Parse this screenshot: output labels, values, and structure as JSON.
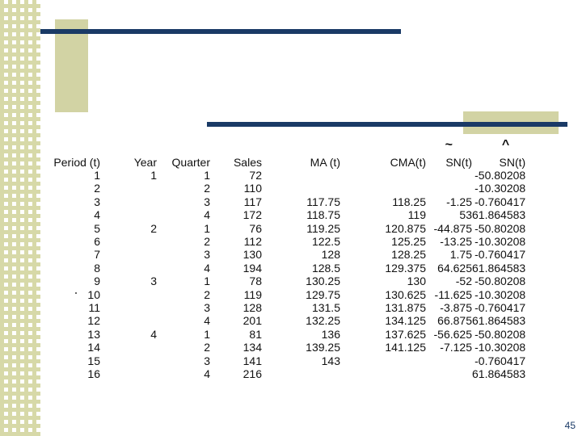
{
  "table": {
    "headers": {
      "period": "Period (t)",
      "year": "Year",
      "quarter": "Quarter",
      "sales": "Sales",
      "ma": "MA (t)",
      "cma": "CMA(t)",
      "sn": "SN(t)",
      "sn_hat": "SN(t)",
      "sn_mark": "~",
      "sn_hat_mark": "^"
    },
    "rows": [
      {
        "period": "1",
        "year": "1",
        "quarter": "1",
        "sales": "72",
        "ma": "",
        "cma": "",
        "sn": "",
        "sn_hat": "-50.80208"
      },
      {
        "period": "2",
        "year": "",
        "quarter": "2",
        "sales": "110",
        "ma": "",
        "cma": "",
        "sn": "",
        "sn_hat": "-10.30208"
      },
      {
        "period": "3",
        "year": "",
        "quarter": "3",
        "sales": "117",
        "ma": "117.75",
        "cma": "118.25",
        "sn": "-1.25",
        "sn_hat": "-0.760417"
      },
      {
        "period": "4",
        "year": "",
        "quarter": "4",
        "sales": "172",
        "ma": "118.75",
        "cma": "119",
        "sn": "53",
        "sn_hat": "61.864583"
      },
      {
        "period": "5",
        "year": "2",
        "quarter": "1",
        "sales": "76",
        "ma": "119.25",
        "cma": "120.875",
        "sn": "-44.875",
        "sn_hat": "-50.80208"
      },
      {
        "period": "6",
        "year": "",
        "quarter": "2",
        "sales": "112",
        "ma": "122.5",
        "cma": "125.25",
        "sn": "-13.25",
        "sn_hat": "-10.30208"
      },
      {
        "period": "7",
        "year": "",
        "quarter": "3",
        "sales": "130",
        "ma": "128",
        "cma": "128.25",
        "sn": "1.75",
        "sn_hat": "-0.760417"
      },
      {
        "period": "8",
        "year": "",
        "quarter": "4",
        "sales": "194",
        "ma": "128.5",
        "cma": "129.375",
        "sn": "64.625",
        "sn_hat": "61.864583"
      },
      {
        "period": "9",
        "year": "3",
        "quarter": "1",
        "sales": "78",
        "ma": "130.25",
        "cma": "130",
        "sn": "-52",
        "sn_hat": "-50.80208"
      },
      {
        "period": "10",
        "year": "",
        "quarter": "2",
        "sales": "119",
        "ma": "129.75",
        "cma": "130.625",
        "sn": "-11.625",
        "sn_hat": "-10.30208"
      },
      {
        "period": "11",
        "year": "",
        "quarter": "3",
        "sales": "128",
        "ma": "131.5",
        "cma": "131.875",
        "sn": "-3.875",
        "sn_hat": "-0.760417"
      },
      {
        "period": "12",
        "year": "",
        "quarter": "4",
        "sales": "201",
        "ma": "132.25",
        "cma": "134.125",
        "sn": "66.875",
        "sn_hat": "61.864583"
      },
      {
        "period": "13",
        "year": "4",
        "quarter": "1",
        "sales": "81",
        "ma": "136",
        "cma": "137.625",
        "sn": "-56.625",
        "sn_hat": "-50.80208"
      },
      {
        "period": "14",
        "year": "",
        "quarter": "2",
        "sales": "134",
        "ma": "139.25",
        "cma": "141.125",
        "sn": "-7.125",
        "sn_hat": "-10.30208"
      },
      {
        "period": "15",
        "year": "",
        "quarter": "3",
        "sales": "141",
        "ma": "143",
        "cma": "",
        "sn": "",
        "sn_hat": "-0.760417"
      },
      {
        "period": "16",
        "year": "",
        "quarter": "4",
        "sales": "216",
        "ma": "",
        "cma": "",
        "sn": "",
        "sn_hat": "61.864583"
      }
    ]
  },
  "footer": {
    "page_number": "45"
  }
}
